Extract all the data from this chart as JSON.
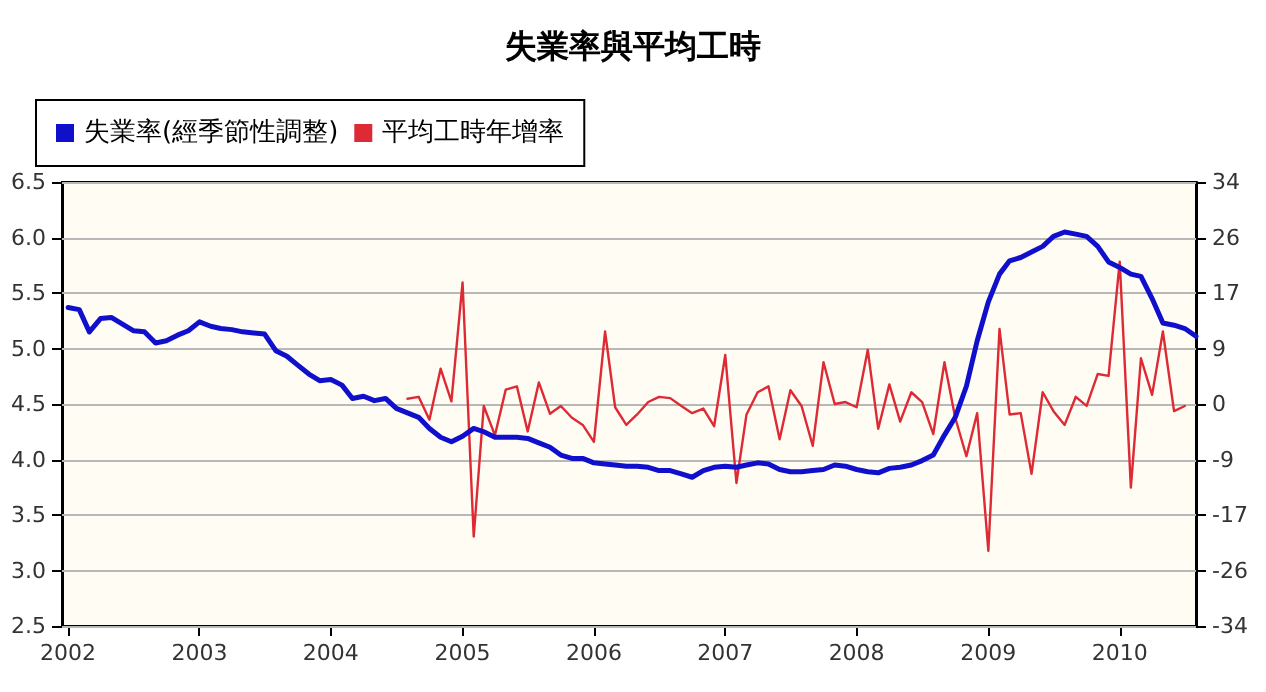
{
  "chart_data": {
    "type": "line",
    "title": "失業率與平均工時",
    "xlim": [
      "2001-12-15",
      "2010-08"
    ],
    "xticks": [
      "2002",
      "2003",
      "2004",
      "2005",
      "2006",
      "2007",
      "2008",
      "2009",
      "2010"
    ],
    "ylim": [
      2.5,
      6.5
    ],
    "yticks": [
      2.5,
      {
        "value": 3,
        "label": "3.0"
      },
      3.5,
      {
        "value": 4,
        "label": "4.0"
      },
      4.5,
      {
        "value": 5,
        "label": "5.0"
      },
      5.5,
      {
        "value": 6,
        "label": "6.0"
      },
      6.5
    ],
    "y2lim": [
      -34,
      34
    ],
    "y2ticks": [
      -34,
      {
        "value": -25.5,
        "label": "-26"
      },
      -17,
      {
        "value": -8.5,
        "label": "-9"
      },
      0,
      {
        "value": 8.5,
        "label": "9"
      },
      17,
      {
        "value": 25.5,
        "label": "26"
      },
      34
    ],
    "grid": "y",
    "legend": "top left",
    "marker": "none",
    "line_style": "solid",
    "series": [
      {
        "name": "失業率(經季節性調整)",
        "color": "#1010cc",
        "x": [
          "2002-01",
          "2002-02",
          "2002-03",
          "2002-04",
          "2002-05",
          "2002-06",
          "2002-07",
          "2002-08",
          "2002-09",
          "2002-10",
          "2002-11",
          "2002-12",
          "2003-01",
          "2003-02",
          "2003-03",
          "2003-04",
          "2003-05",
          "2003-06",
          "2003-07",
          "2003-08",
          "2003-09",
          "2003-10",
          "2003-11",
          "2003-12",
          "2004-01",
          "2004-02",
          "2004-03",
          "2004-04",
          "2004-05",
          "2004-06",
          "2004-07",
          "2004-08",
          "2004-09",
          "2004-10",
          "2004-11",
          "2004-12",
          "2005-01",
          "2005-02",
          "2005-03",
          "2005-04",
          "2005-05",
          "2005-06",
          "2005-07",
          "2005-08",
          "2005-09",
          "2005-10",
          "2005-11",
          "2005-12",
          "2006-01",
          "2006-02",
          "2006-03",
          "2006-04",
          "2006-05",
          "2006-06",
          "2006-07",
          "2006-08",
          "2006-09",
          "2006-10",
          "2006-11",
          "2006-12",
          "2007-01",
          "2007-02",
          "2007-03",
          "2007-04",
          "2007-05",
          "2007-06",
          "2007-07",
          "2007-08",
          "2007-09",
          "2007-10",
          "2007-11",
          "2007-12",
          "2008-01",
          "2008-02",
          "2008-03",
          "2008-04",
          "2008-05",
          "2008-06",
          "2008-07",
          "2008-08",
          "2008-09",
          "2008-10",
          "2008-11",
          "2008-12",
          "2009-01",
          "2009-02",
          "2009-03",
          "2009-04",
          "2009-05",
          "2009-06",
          "2009-07",
          "2009-08",
          "2009-09",
          "2009-10",
          "2009-11",
          "2009-12",
          "2010-01",
          "2010-02",
          "2010-03",
          "2010-04",
          "2010-05",
          "2010-06",
          "2010-07",
          "2010-08"
        ],
        "values": [
          5.37,
          5.35,
          5.15,
          5.27,
          5.28,
          5.22,
          5.16,
          5.15,
          5.05,
          5.07,
          5.12,
          5.16,
          5.24,
          5.2,
          5.18,
          5.17,
          5.15,
          5.14,
          5.13,
          4.98,
          4.93,
          4.85,
          4.77,
          4.71,
          4.72,
          4.67,
          4.55,
          4.57,
          4.53,
          4.55,
          4.46,
          4.42,
          4.38,
          4.28,
          4.2,
          4.16,
          4.21,
          4.28,
          4.25,
          4.2,
          4.2,
          4.2,
          4.19,
          4.15,
          4.11,
          4.04,
          4.01,
          4.01,
          3.97,
          3.96,
          3.95,
          3.94,
          3.94,
          3.93,
          3.9,
          3.9,
          3.87,
          3.84,
          3.9,
          3.93,
          3.94,
          3.93,
          3.95,
          3.97,
          3.96,
          3.91,
          3.89,
          3.89,
          3.9,
          3.91,
          3.95,
          3.94,
          3.91,
          3.89,
          3.88,
          3.92,
          3.93,
          3.95,
          3.99,
          4.04,
          4.22,
          4.38,
          4.66,
          5.07,
          5.42,
          5.67,
          5.79,
          5.82,
          5.87,
          5.92,
          6.01,
          6.05,
          6.03,
          6.01,
          5.92,
          5.78,
          5.73,
          5.67,
          5.65,
          5.45,
          5.23,
          5.21,
          5.18,
          5.11
        ]
      },
      {
        "name": "平均工時年增率",
        "color": "#dd2a35",
        "axis": "y2",
        "x": [
          "2004-08",
          "2004-09",
          "2004-10",
          "2004-11",
          "2004-12",
          "2005-01",
          "2005-02",
          "2005-03",
          "2005-04",
          "2005-05",
          "2005-06",
          "2005-07",
          "2005-08",
          "2005-09",
          "2005-10",
          "2005-11",
          "2005-12",
          "2006-01",
          "2006-02",
          "2006-03",
          "2006-04",
          "2006-05",
          "2006-06",
          "2006-07",
          "2006-08",
          "2006-09",
          "2006-10",
          "2006-11",
          "2006-12",
          "2007-01",
          "2007-02",
          "2007-03",
          "2007-04",
          "2007-05",
          "2007-06",
          "2007-07",
          "2007-08",
          "2007-09",
          "2007-10",
          "2007-11",
          "2007-12",
          "2008-01",
          "2008-02",
          "2008-03",
          "2008-04",
          "2008-05",
          "2008-06",
          "2008-07",
          "2008-08",
          "2008-09",
          "2008-10",
          "2008-11",
          "2008-12",
          "2009-01",
          "2009-02",
          "2009-03",
          "2009-04",
          "2009-05",
          "2009-06",
          "2009-07",
          "2009-08",
          "2009-09",
          "2009-10",
          "2009-11",
          "2009-12",
          "2010-01",
          "2010-02",
          "2010-03",
          "2010-04",
          "2010-05",
          "2010-06",
          "2010-07"
        ],
        "values": [
          0.8,
          1.1,
          -2.4,
          5.4,
          0.4,
          18.6,
          -20.3,
          -0.3,
          -4.8,
          2.2,
          2.7,
          -4.2,
          3.3,
          -1.5,
          -0.3,
          -2.1,
          -3.2,
          -5.8,
          11.1,
          -0.5,
          -3.2,
          -1.6,
          0.3,
          1.1,
          0.9,
          -0.3,
          -1.4,
          -0.7,
          -3.4,
          7.5,
          -12.1,
          -1.6,
          1.8,
          2.7,
          -5.4,
          2.1,
          -0.3,
          -6.4,
          6.4,
          0,
          0.3,
          -0.5,
          8.3,
          -3.8,
          3,
          -2.7,
          1.8,
          0.3,
          -4.6,
          6.4,
          -2.1,
          -8,
          -1.4,
          -22.5,
          11.5,
          -1.6,
          -1.4,
          -10.7,
          1.8,
          -1.1,
          -3.2,
          1.1,
          -0.3,
          4.6,
          4.3,
          21.8,
          -12.8,
          7,
          1.4,
          11.1,
          -1.1,
          -0.3
        ]
      }
    ]
  }
}
